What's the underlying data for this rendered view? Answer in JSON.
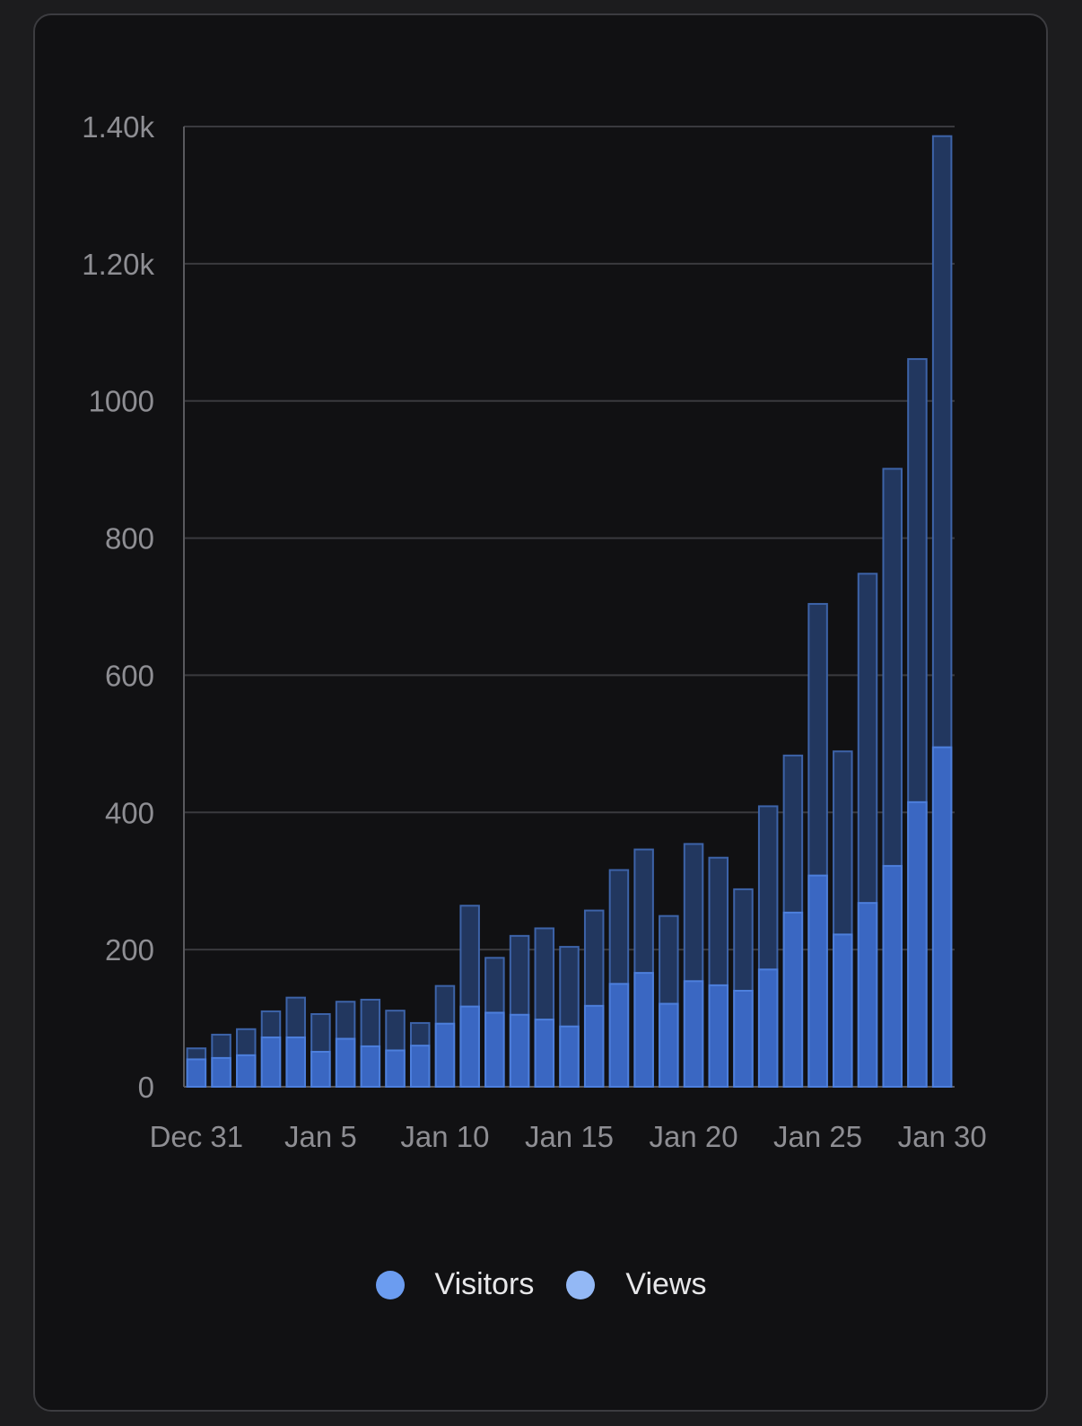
{
  "chart_data": {
    "type": "bar",
    "stacked_overlay": true,
    "x": [
      "Dec 31",
      "Jan 1",
      "Jan 2",
      "Jan 3",
      "Jan 4",
      "Jan 5",
      "Jan 6",
      "Jan 7",
      "Jan 8",
      "Jan 9",
      "Jan 10",
      "Jan 11",
      "Jan 12",
      "Jan 13",
      "Jan 14",
      "Jan 15",
      "Jan 16",
      "Jan 17",
      "Jan 18",
      "Jan 19",
      "Jan 20",
      "Jan 21",
      "Jan 22",
      "Jan 23",
      "Jan 24",
      "Jan 25",
      "Jan 26",
      "Jan 27",
      "Jan 28",
      "Jan 29",
      "Jan 30"
    ],
    "x_tick_labels": [
      "Dec 31",
      "Jan 5",
      "Jan 10",
      "Jan 15",
      "Jan 20",
      "Jan 25",
      "Jan 30"
    ],
    "y_tick_labels": [
      "0",
      "200",
      "400",
      "600",
      "800",
      "1000",
      "1.20k",
      "1.40k"
    ],
    "ylim": [
      0,
      1400
    ],
    "grid": true,
    "legend_position": "bottom",
    "series": [
      {
        "name": "Visitors",
        "color": "#6b9cf0",
        "values": [
          40,
          42,
          46,
          72,
          72,
          51,
          70,
          59,
          53,
          60,
          92,
          117,
          108,
          105,
          98,
          88,
          118,
          150,
          166,
          121,
          154,
          148,
          140,
          171,
          254,
          308,
          222,
          268,
          322,
          415,
          495
        ]
      },
      {
        "name": "Views",
        "color": "#93b8f5",
        "values": [
          56,
          76,
          84,
          110,
          130,
          106,
          124,
          127,
          111,
          93,
          147,
          264,
          188,
          220,
          231,
          204,
          257,
          316,
          346,
          249,
          354,
          334,
          288,
          409,
          483,
          704,
          489,
          748,
          901,
          1061,
          1386
        ]
      }
    ]
  }
}
